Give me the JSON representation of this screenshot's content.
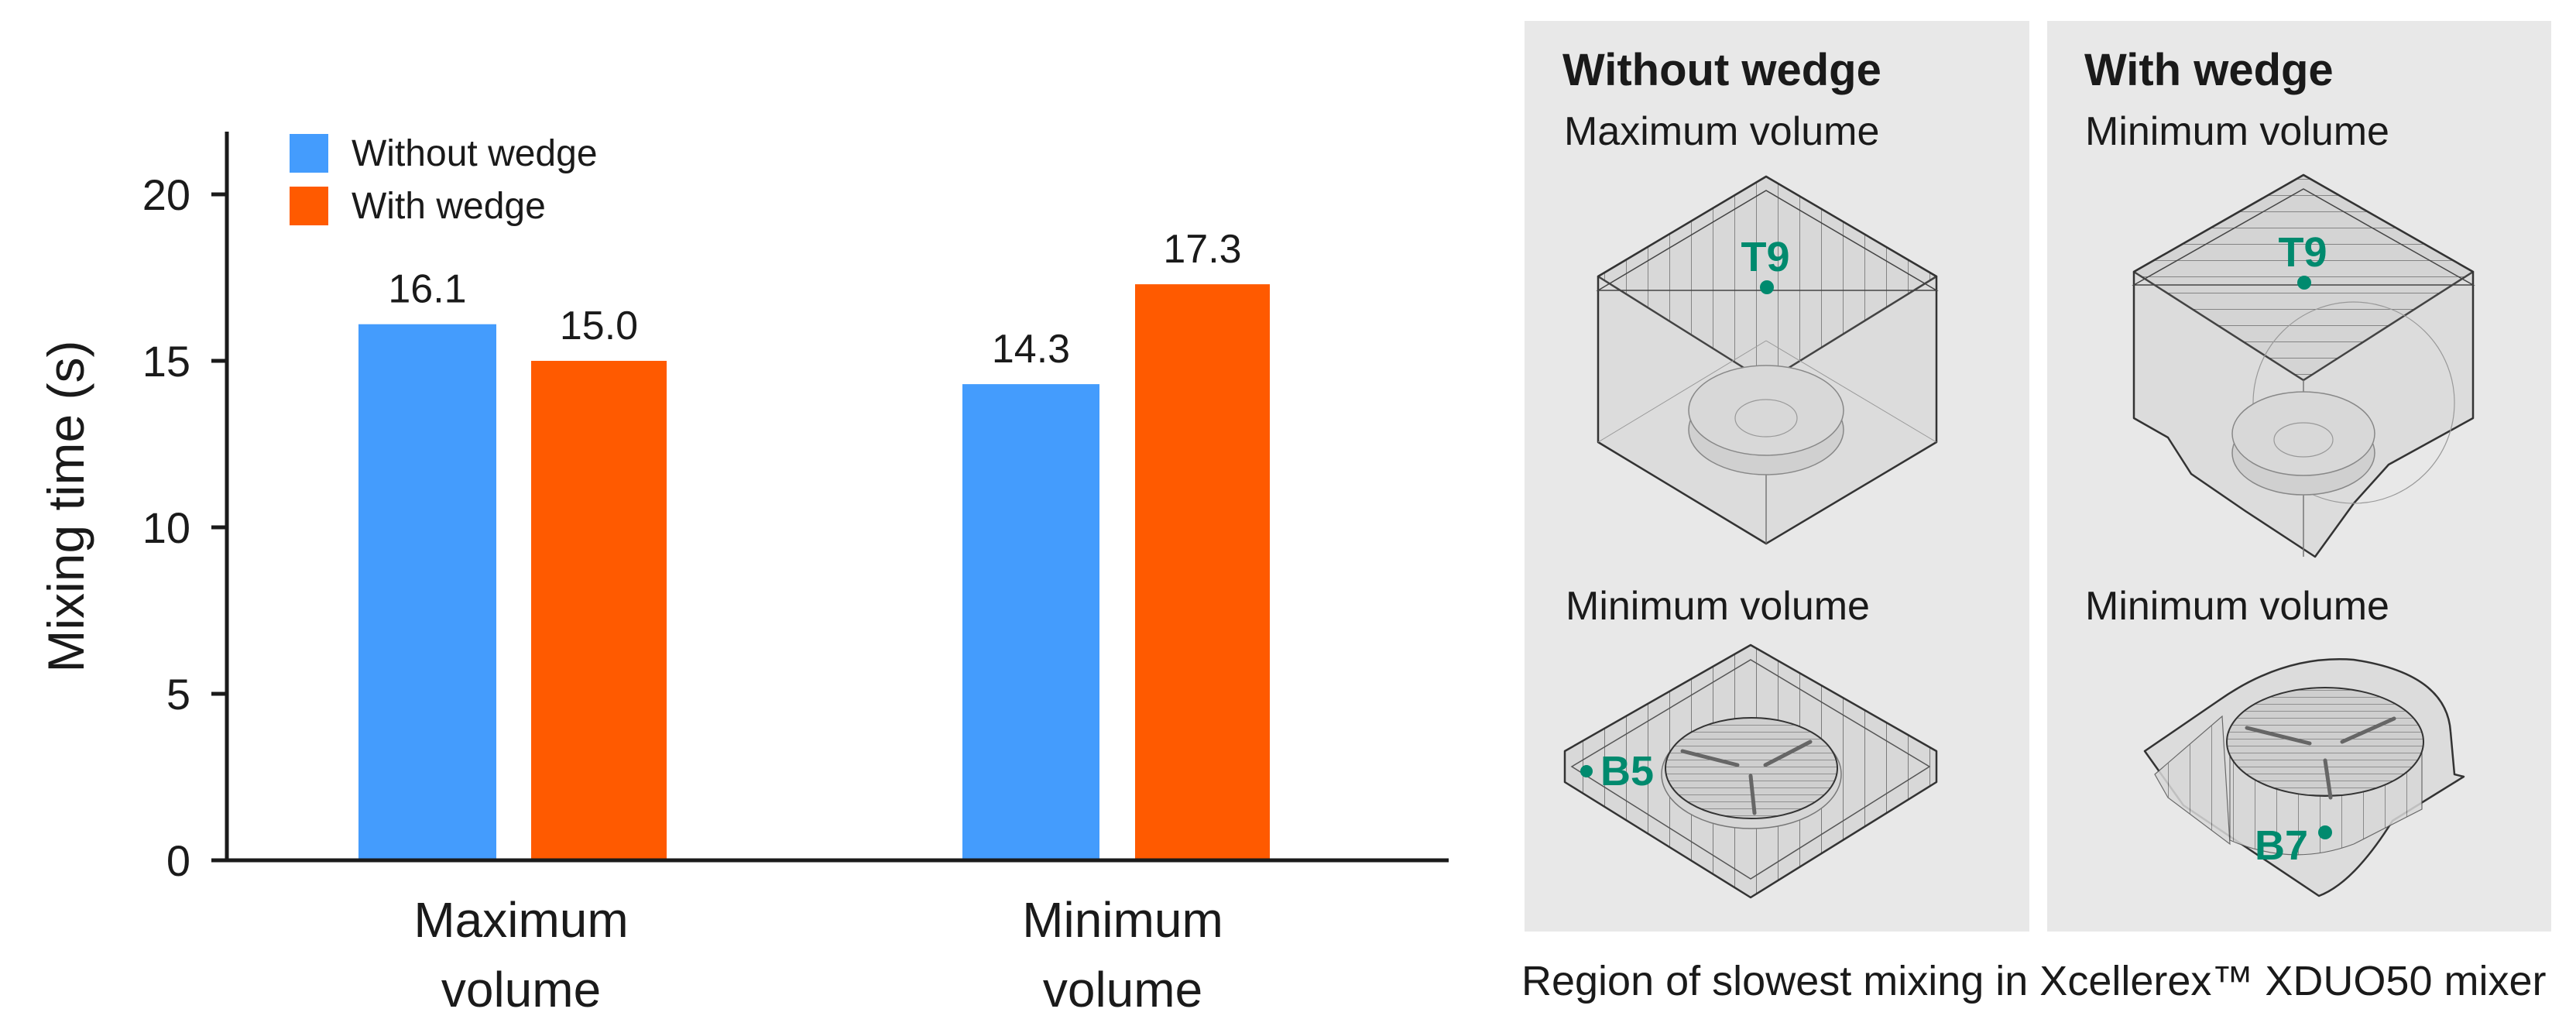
{
  "chart_data": {
    "type": "bar",
    "title": "",
    "xlabel": "",
    "ylabel": "Mixing time (s)",
    "ylim": [
      0,
      22
    ],
    "yticks": [
      0,
      5,
      10,
      15,
      20
    ],
    "grid": false,
    "legend_position": "top-left",
    "categories": [
      "Maximum volume",
      "Minimum volume"
    ],
    "category_lines": [
      [
        "Maximum",
        "volume"
      ],
      [
        "Minimum",
        "volume"
      ]
    ],
    "series": [
      {
        "name": "Without wedge",
        "color": "#449cfd",
        "values": [
          16.1,
          14.3
        ],
        "labels": [
          "16.1",
          "14.3"
        ]
      },
      {
        "name": "With wedge",
        "color": "#ff5a00",
        "values": [
          15.0,
          17.3
        ],
        "labels": [
          "15.0",
          "17.3"
        ]
      }
    ]
  },
  "axis": {
    "ylabel": "Mixing time (s)",
    "ytick_labels": [
      "0",
      "5",
      "10",
      "15",
      "20"
    ]
  },
  "legend": {
    "items": [
      {
        "label": "Without wedge",
        "color": "#449cfd"
      },
      {
        "label": "With wedge",
        "color": "#ff5a00"
      }
    ]
  },
  "panels": [
    {
      "title": "Without wedge",
      "top_subtitle": "Maximum volume",
      "top_marker": "T9",
      "bottom_subtitle": "Minimum volume",
      "bottom_marker": "B5"
    },
    {
      "title": "With wedge",
      "top_subtitle": "Minimum volume",
      "top_marker": "T9",
      "bottom_subtitle": "Minimum volume",
      "bottom_marker": "B7"
    }
  ],
  "colors": {
    "blue": "#449cfd",
    "orange": "#ff5a00",
    "marker_green": "#008a6e",
    "panel_bg": "#e8e8e8"
  },
  "caption": "Region of slowest mixing in Xcellerex™ XDUO50 mixer"
}
